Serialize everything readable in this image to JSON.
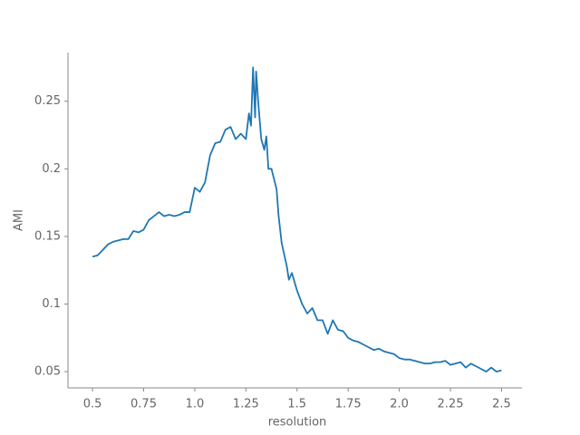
{
  "chart_data": {
    "type": "line",
    "xlabel": "resolution",
    "ylabel": "AMI",
    "x": [
      0.5,
      0.525,
      0.55,
      0.575,
      0.6,
      0.625,
      0.65,
      0.675,
      0.7,
      0.725,
      0.75,
      0.775,
      0.8,
      0.825,
      0.85,
      0.875,
      0.9,
      0.925,
      0.95,
      0.975,
      1.0,
      1.025,
      1.05,
      1.075,
      1.1,
      1.125,
      1.15,
      1.175,
      1.2,
      1.225,
      1.25,
      1.265,
      1.275,
      1.285,
      1.295,
      1.3,
      1.31,
      1.325,
      1.34,
      1.35,
      1.36,
      1.375,
      1.4,
      1.41,
      1.425,
      1.45,
      1.46,
      1.475,
      1.5,
      1.525,
      1.55,
      1.575,
      1.6,
      1.625,
      1.65,
      1.675,
      1.7,
      1.725,
      1.75,
      1.775,
      1.8,
      1.825,
      1.85,
      1.875,
      1.9,
      1.925,
      1.95,
      1.975,
      2.0,
      2.025,
      2.05,
      2.075,
      2.1,
      2.125,
      2.15,
      2.175,
      2.2,
      2.225,
      2.25,
      2.275,
      2.3,
      2.325,
      2.35,
      2.375,
      2.4,
      2.425,
      2.45,
      2.475,
      2.5
    ],
    "series": [
      {
        "color": "#1f77b4",
        "values": [
          0.135,
          0.136,
          0.14,
          0.144,
          0.146,
          0.147,
          0.148,
          0.148,
          0.154,
          0.153,
          0.155,
          0.162,
          0.165,
          0.168,
          0.165,
          0.166,
          0.165,
          0.166,
          0.168,
          0.168,
          0.186,
          0.183,
          0.19,
          0.21,
          0.219,
          0.22,
          0.229,
          0.231,
          0.222,
          0.226,
          0.222,
          0.241,
          0.232,
          0.275,
          0.238,
          0.272,
          0.25,
          0.222,
          0.214,
          0.224,
          0.2,
          0.2,
          0.185,
          0.165,
          0.145,
          0.128,
          0.118,
          0.123,
          0.11,
          0.1,
          0.093,
          0.097,
          0.088,
          0.088,
          0.078,
          0.088,
          0.081,
          0.08,
          0.075,
          0.073,
          0.072,
          0.07,
          0.068,
          0.066,
          0.067,
          0.065,
          0.064,
          0.063,
          0.06,
          0.059,
          0.059,
          0.058,
          0.057,
          0.056,
          0.056,
          0.057,
          0.057,
          0.058,
          0.055,
          0.056,
          0.057,
          0.053,
          0.056,
          0.054,
          0.052,
          0.05,
          0.053,
          0.05,
          0.051
        ]
      }
    ],
    "xlim": [
      0.38,
      2.6
    ],
    "ylim": [
      0.038,
      0.286
    ],
    "xticks": [
      0.5,
      0.75,
      {
        "value": 1,
        "label": "1.0"
      },
      1.25,
      1.5,
      1.75,
      {
        "value": 2,
        "label": "2.0"
      },
      2.25,
      2.5
    ],
    "yticks": [
      0.05,
      0.1,
      0.15,
      0.2,
      0.25
    ]
  }
}
